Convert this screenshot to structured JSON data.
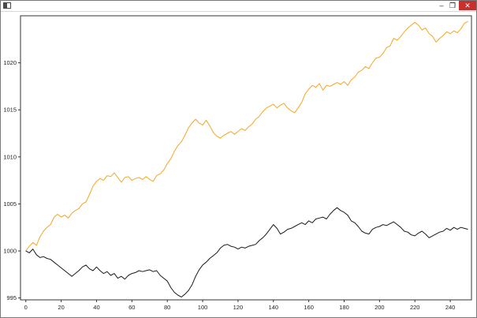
{
  "window": {
    "title": "",
    "controls": {
      "minimize": "–",
      "maximize": "❐",
      "close": "✕"
    },
    "colors": {
      "close_bg": "#c8302d",
      "frame": "#7a7a7a"
    }
  },
  "chart_data": {
    "type": "line",
    "title": "",
    "xlabel": "",
    "ylabel": "",
    "xlim": [
      -3,
      252
    ],
    "ylim": [
      994.8,
      1025
    ],
    "grid": false,
    "xticks": [
      0,
      20,
      40,
      60,
      80,
      100,
      120,
      140,
      160,
      180,
      200,
      220,
      240
    ],
    "yticks": [
      995,
      1000,
      1005,
      1010,
      1015,
      1020
    ],
    "series": [
      {
        "color": "#f5a623",
        "points": [
          [
            0,
            1000
          ],
          [
            2,
            1000.5
          ],
          [
            4,
            1000.9
          ],
          [
            6,
            1000.6
          ],
          [
            8,
            1001.5
          ],
          [
            10,
            1002.1
          ],
          [
            12,
            1002.5
          ],
          [
            14,
            1002.8
          ],
          [
            16,
            1003.6
          ],
          [
            18,
            1003.9
          ],
          [
            20,
            1003.6
          ],
          [
            22,
            1003.8
          ],
          [
            24,
            1003.5
          ],
          [
            26,
            1004
          ],
          [
            28,
            1004.3
          ],
          [
            30,
            1004.5
          ],
          [
            32,
            1005
          ],
          [
            34,
            1005.2
          ],
          [
            36,
            1006
          ],
          [
            38,
            1006.9
          ],
          [
            40,
            1007.4
          ],
          [
            42,
            1007.7
          ],
          [
            44,
            1007.5
          ],
          [
            46,
            1008
          ],
          [
            48,
            1007.9
          ],
          [
            50,
            1008.3
          ],
          [
            52,
            1007.8
          ],
          [
            54,
            1007.3
          ],
          [
            56,
            1007.8
          ],
          [
            58,
            1007.9
          ],
          [
            60,
            1007.5
          ],
          [
            62,
            1007.7
          ],
          [
            64,
            1007.8
          ],
          [
            66,
            1007.6
          ],
          [
            68,
            1007.9
          ],
          [
            70,
            1007.6
          ],
          [
            72,
            1007.4
          ],
          [
            74,
            1008
          ],
          [
            76,
            1008.2
          ],
          [
            78,
            1008.6
          ],
          [
            80,
            1009.3
          ],
          [
            82,
            1009.8
          ],
          [
            84,
            1010.6
          ],
          [
            86,
            1011.2
          ],
          [
            88,
            1011.6
          ],
          [
            90,
            1012.3
          ],
          [
            92,
            1013.1
          ],
          [
            94,
            1013.6
          ],
          [
            96,
            1014
          ],
          [
            98,
            1013.6
          ],
          [
            100,
            1013.4
          ],
          [
            102,
            1013.9
          ],
          [
            104,
            1013.3
          ],
          [
            106,
            1012.6
          ],
          [
            108,
            1012.2
          ],
          [
            110,
            1012
          ],
          [
            112,
            1012.3
          ],
          [
            114,
            1012.5
          ],
          [
            116,
            1012.7
          ],
          [
            118,
            1012.4
          ],
          [
            120,
            1012.7
          ],
          [
            122,
            1013
          ],
          [
            124,
            1012.8
          ],
          [
            126,
            1013.2
          ],
          [
            128,
            1013.5
          ],
          [
            130,
            1014
          ],
          [
            132,
            1014.3
          ],
          [
            134,
            1014.8
          ],
          [
            136,
            1015.2
          ],
          [
            138,
            1015.4
          ],
          [
            140,
            1015.6
          ],
          [
            142,
            1015.2
          ],
          [
            144,
            1015.5
          ],
          [
            146,
            1015.7
          ],
          [
            148,
            1015.2
          ],
          [
            150,
            1014.9
          ],
          [
            152,
            1014.7
          ],
          [
            154,
            1015.2
          ],
          [
            156,
            1015.8
          ],
          [
            158,
            1016.7
          ],
          [
            160,
            1017.2
          ],
          [
            162,
            1017.6
          ],
          [
            164,
            1017.4
          ],
          [
            166,
            1017.8
          ],
          [
            168,
            1017.1
          ],
          [
            170,
            1017.6
          ],
          [
            172,
            1017.5
          ],
          [
            174,
            1017.7
          ],
          [
            176,
            1017.9
          ],
          [
            178,
            1017.7
          ],
          [
            180,
            1018
          ],
          [
            182,
            1017.6
          ],
          [
            184,
            1018.2
          ],
          [
            186,
            1018.5
          ],
          [
            188,
            1019
          ],
          [
            190,
            1019.2
          ],
          [
            192,
            1019.6
          ],
          [
            194,
            1019.4
          ],
          [
            196,
            1020
          ],
          [
            198,
            1020.5
          ],
          [
            200,
            1020.6
          ],
          [
            202,
            1021
          ],
          [
            204,
            1021.6
          ],
          [
            206,
            1021.8
          ],
          [
            208,
            1022.6
          ],
          [
            210,
            1022.4
          ],
          [
            212,
            1022.8
          ],
          [
            214,
            1023.3
          ],
          [
            216,
            1023.7
          ],
          [
            218,
            1024
          ],
          [
            220,
            1024.3
          ],
          [
            222,
            1024
          ],
          [
            224,
            1023.5
          ],
          [
            226,
            1023.7
          ],
          [
            228,
            1023.1
          ],
          [
            230,
            1022.8
          ],
          [
            232,
            1022.2
          ],
          [
            234,
            1022.6
          ],
          [
            236,
            1022.9
          ],
          [
            238,
            1023.3
          ],
          [
            240,
            1023.1
          ],
          [
            242,
            1023.4
          ],
          [
            244,
            1023.2
          ],
          [
            246,
            1023.6
          ],
          [
            248,
            1024.2
          ],
          [
            250,
            1024.4
          ]
        ]
      },
      {
        "color": "#1a1a1a",
        "points": [
          [
            0,
            1000
          ],
          [
            2,
            999.8
          ],
          [
            4,
            1000.2
          ],
          [
            6,
            999.6
          ],
          [
            8,
            999.3
          ],
          [
            10,
            999.4
          ],
          [
            12,
            999.2
          ],
          [
            14,
            999.1
          ],
          [
            16,
            998.8
          ],
          [
            18,
            998.5
          ],
          [
            20,
            998.2
          ],
          [
            22,
            997.9
          ],
          [
            24,
            997.6
          ],
          [
            26,
            997.3
          ],
          [
            28,
            997.6
          ],
          [
            30,
            997.9
          ],
          [
            32,
            998.3
          ],
          [
            34,
            998.5
          ],
          [
            36,
            998.1
          ],
          [
            38,
            997.9
          ],
          [
            40,
            998.3
          ],
          [
            42,
            997.9
          ],
          [
            44,
            997.6
          ],
          [
            46,
            997.8
          ],
          [
            48,
            997.4
          ],
          [
            50,
            997.6
          ],
          [
            52,
            997.1
          ],
          [
            54,
            997.3
          ],
          [
            56,
            997
          ],
          [
            58,
            997.4
          ],
          [
            60,
            997.6
          ],
          [
            62,
            997.7
          ],
          [
            64,
            997.9
          ],
          [
            66,
            997.8
          ],
          [
            68,
            997.9
          ],
          [
            70,
            998
          ],
          [
            72,
            997.8
          ],
          [
            74,
            997.9
          ],
          [
            76,
            997.4
          ],
          [
            78,
            997.1
          ],
          [
            80,
            996.8
          ],
          [
            82,
            996.1
          ],
          [
            84,
            995.6
          ],
          [
            86,
            995.3
          ],
          [
            88,
            995.1
          ],
          [
            90,
            995.4
          ],
          [
            92,
            995.8
          ],
          [
            94,
            996.4
          ],
          [
            96,
            997.3
          ],
          [
            98,
            998
          ],
          [
            100,
            998.5
          ],
          [
            102,
            998.8
          ],
          [
            104,
            999.2
          ],
          [
            106,
            999.5
          ],
          [
            108,
            999.8
          ],
          [
            110,
            1000.3
          ],
          [
            112,
            1000.6
          ],
          [
            114,
            1000.7
          ],
          [
            116,
            1000.5
          ],
          [
            118,
            1000.4
          ],
          [
            120,
            1000.2
          ],
          [
            122,
            1000.4
          ],
          [
            124,
            1000.3
          ],
          [
            126,
            1000.5
          ],
          [
            128,
            1000.6
          ],
          [
            130,
            1000.7
          ],
          [
            132,
            1001.1
          ],
          [
            134,
            1001.4
          ],
          [
            136,
            1001.8
          ],
          [
            138,
            1002.3
          ],
          [
            140,
            1002.8
          ],
          [
            142,
            1002.4
          ],
          [
            144,
            1001.8
          ],
          [
            146,
            1002
          ],
          [
            148,
            1002.3
          ],
          [
            150,
            1002.4
          ],
          [
            152,
            1002.6
          ],
          [
            154,
            1002.8
          ],
          [
            156,
            1003
          ],
          [
            158,
            1002.8
          ],
          [
            160,
            1003.2
          ],
          [
            162,
            1003
          ],
          [
            164,
            1003.4
          ],
          [
            166,
            1003.5
          ],
          [
            168,
            1003.6
          ],
          [
            170,
            1003.4
          ],
          [
            172,
            1003.9
          ],
          [
            174,
            1004.3
          ],
          [
            176,
            1004.6
          ],
          [
            178,
            1004.3
          ],
          [
            180,
            1004.1
          ],
          [
            182,
            1003.8
          ],
          [
            184,
            1003.2
          ],
          [
            186,
            1003
          ],
          [
            188,
            1002.6
          ],
          [
            190,
            1002.1
          ],
          [
            192,
            1001.9
          ],
          [
            194,
            1001.8
          ],
          [
            196,
            1002.3
          ],
          [
            198,
            1002.5
          ],
          [
            200,
            1002.6
          ],
          [
            202,
            1002.8
          ],
          [
            204,
            1002.7
          ],
          [
            206,
            1002.9
          ],
          [
            208,
            1003.1
          ],
          [
            210,
            1002.8
          ],
          [
            212,
            1002.5
          ],
          [
            214,
            1002.1
          ],
          [
            216,
            1002
          ],
          [
            218,
            1001.7
          ],
          [
            220,
            1001.6
          ],
          [
            222,
            1001.9
          ],
          [
            224,
            1002.1
          ],
          [
            226,
            1001.8
          ],
          [
            228,
            1001.4
          ],
          [
            230,
            1001.6
          ],
          [
            232,
            1001.8
          ],
          [
            234,
            1002
          ],
          [
            236,
            1002.1
          ],
          [
            238,
            1002.4
          ],
          [
            240,
            1002.2
          ],
          [
            242,
            1002.5
          ],
          [
            244,
            1002.3
          ],
          [
            246,
            1002.5
          ],
          [
            248,
            1002.4
          ],
          [
            250,
            1002.3
          ]
        ]
      }
    ]
  }
}
